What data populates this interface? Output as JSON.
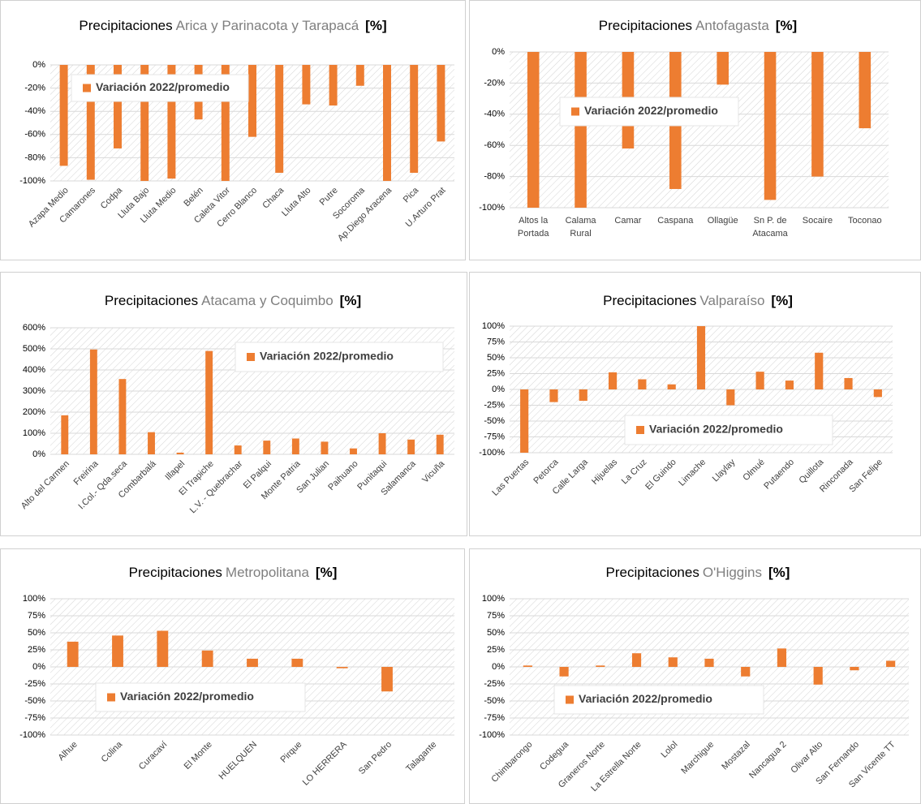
{
  "chart_data": [
    {
      "type": "bar",
      "title": "Precipitaciones",
      "region": "Arica y Parinacota y Tarapacá",
      "unit": "[%]",
      "categories": [
        "Azapa Medio",
        "Camarones",
        "Codpa",
        "Lluta Bajo",
        "Lluta Medio",
        "Belén",
        "Caleta Vitor",
        "Cerro Blanco",
        "Chaca",
        "Lluta Alto",
        "Putre",
        "Socoroma",
        "Ap.Diego Aracena",
        "Pica",
        "U.Arturo Prat"
      ],
      "series": [
        {
          "name": "Variación 2022/promedio",
          "color": "#ed7d31",
          "values": [
            -87,
            -99,
            -72,
            -100,
            -98,
            -47,
            -100,
            -62,
            -93,
            -34,
            -35,
            -18,
            -100,
            -93,
            -66
          ]
        }
      ],
      "ylim": [
        -100,
        0
      ],
      "yticks": [
        {
          "value": 0,
          "label": "0%"
        },
        {
          "value": -20,
          "label": "-20%"
        },
        {
          "value": -40,
          "label": "-40%"
        },
        {
          "value": -60,
          "label": "-60%"
        },
        {
          "value": -80,
          "label": "-80%"
        },
        {
          "value": -100,
          "label": "-100%"
        }
      ],
      "grid": true
    },
    {
      "type": "bar",
      "title": "Precipitaciones",
      "region": "Antofagasta",
      "unit": "[%]",
      "categories": [
        "Altos la Portada",
        "Calama Rural",
        "Camar",
        "Caspana",
        "Ollagüe",
        "Sn P. de Atacama",
        "Socaire",
        "Toconao"
      ],
      "series": [
        {
          "name": "Variación 2022/promedio",
          "color": "#ed7d31",
          "values": [
            -100,
            -100,
            -62,
            -88,
            -21,
            -95,
            -80,
            -49
          ]
        }
      ],
      "ylim": [
        -100,
        0
      ],
      "yticks": [
        {
          "value": 0,
          "label": "0%"
        },
        {
          "value": -20,
          "label": "-20%"
        },
        {
          "value": -40,
          "label": "-40%"
        },
        {
          "value": -60,
          "label": "-60%"
        },
        {
          "value": -80,
          "label": "-80%"
        },
        {
          "value": -100,
          "label": "-100%"
        }
      ],
      "grid": true
    },
    {
      "type": "bar",
      "title": "Precipitaciones",
      "region": "Atacama y Coquimbo",
      "unit": "[%]",
      "categories": [
        "Alto del Carmen",
        "Freirina",
        "I.Col.- Qda.seca",
        "Combarbalá",
        "Illapel",
        "El Trapiche",
        "L.V. - Quebrachar",
        "El Palqui",
        "Monte Patria",
        "San Julian",
        "Paihuano",
        "Punitaqui",
        "Salamanca",
        "Vicuña"
      ],
      "series": [
        {
          "name": "Variación 2022/promedio",
          "color": "#ed7d31",
          "values": [
            185,
            497,
            357,
            105,
            8,
            490,
            42,
            65,
            75,
            60,
            28,
            100,
            70,
            93
          ]
        }
      ],
      "ylim": [
        0,
        600
      ],
      "yticks": [
        {
          "value": 0,
          "label": "0%"
        },
        {
          "value": 100,
          "label": "100%"
        },
        {
          "value": 200,
          "label": "200%"
        },
        {
          "value": 300,
          "label": "300%"
        },
        {
          "value": 400,
          "label": "400%"
        },
        {
          "value": 500,
          "label": "500%"
        },
        {
          "value": 600,
          "label": "600%"
        }
      ],
      "grid": true
    },
    {
      "type": "bar",
      "title": "Precipitaciones",
      "region": "Valparaíso",
      "unit": "[%]",
      "categories": [
        "Las Puertas",
        "Petorca",
        "Calle Larga",
        "Hijuelas",
        "La Cruz",
        "El Guindo",
        "Limache",
        "Llaylay",
        "Olmué",
        "Putaendo",
        "Quillota",
        "Rinconada",
        "San Felipe"
      ],
      "series": [
        {
          "name": "Variación 2022/promedio",
          "color": "#ed7d31",
          "values": [
            -100,
            -20,
            -18,
            27,
            16,
            8,
            100,
            -25,
            28,
            14,
            58,
            18,
            -12
          ]
        }
      ],
      "ylim": [
        -100,
        100
      ],
      "yticks": [
        {
          "value": 100,
          "label": "100%"
        },
        {
          "value": 75,
          "label": "75%"
        },
        {
          "value": 50,
          "label": "50%"
        },
        {
          "value": 25,
          "label": "25%"
        },
        {
          "value": 0,
          "label": "0%"
        },
        {
          "value": -25,
          "label": "-25%"
        },
        {
          "value": -50,
          "label": "-50%"
        },
        {
          "value": -75,
          "label": "-75%"
        },
        {
          "value": -100,
          "label": "-100%"
        }
      ],
      "grid": true
    },
    {
      "type": "bar",
      "title": "Precipitaciones",
      "region": "Metropolitana",
      "unit": "[%]",
      "categories": [
        "Alhue",
        "Colina",
        "Curacaví",
        "El Monte",
        "HUELQUEN",
        "Pirque",
        "LO HERRERA",
        "San Pedro",
        "Talagante"
      ],
      "series": [
        {
          "name": "Variación 2022/promedio",
          "color": "#ed7d31",
          "values": [
            37,
            46,
            53,
            24,
            12,
            12,
            -2,
            -36,
            0
          ]
        }
      ],
      "ylim": [
        -100,
        100
      ],
      "yticks": [
        {
          "value": 100,
          "label": "100%"
        },
        {
          "value": 75,
          "label": "75%"
        },
        {
          "value": 50,
          "label": "50%"
        },
        {
          "value": 25,
          "label": "25%"
        },
        {
          "value": 0,
          "label": "0%"
        },
        {
          "value": -25,
          "label": "-25%"
        },
        {
          "value": -50,
          "label": "-50%"
        },
        {
          "value": -75,
          "label": "-75%"
        },
        {
          "value": -100,
          "label": "-100%"
        }
      ],
      "grid": true
    },
    {
      "type": "bar",
      "title": "Precipitaciones",
      "region": "O'Higgins",
      "unit": "[%]",
      "categories": [
        "Chimbarongo",
        "Codegua",
        "Graneros Norte",
        "La Estrella Norte",
        "Lolol",
        "Marchigue",
        "Mostazal",
        "Nancagua 2",
        "Olivar Alto",
        "San Fernando",
        "San Vicente TT"
      ],
      "series": [
        {
          "name": "Variación 2022/promedio",
          "color": "#ed7d31",
          "values": [
            2,
            -14,
            2,
            20,
            14,
            12,
            -14,
            27,
            -26,
            -5,
            9
          ]
        }
      ],
      "ylim": [
        -100,
        100
      ],
      "yticks": [
        {
          "value": 100,
          "label": "100%"
        },
        {
          "value": 75,
          "label": "75%"
        },
        {
          "value": 50,
          "label": "50%"
        },
        {
          "value": 25,
          "label": "25%"
        },
        {
          "value": 0,
          "label": "0%"
        },
        {
          "value": -25,
          "label": "-25%"
        },
        {
          "value": -50,
          "label": "-50%"
        },
        {
          "value": -75,
          "label": "-75%"
        },
        {
          "value": -100,
          "label": "-100%"
        }
      ],
      "grid": true
    }
  ]
}
